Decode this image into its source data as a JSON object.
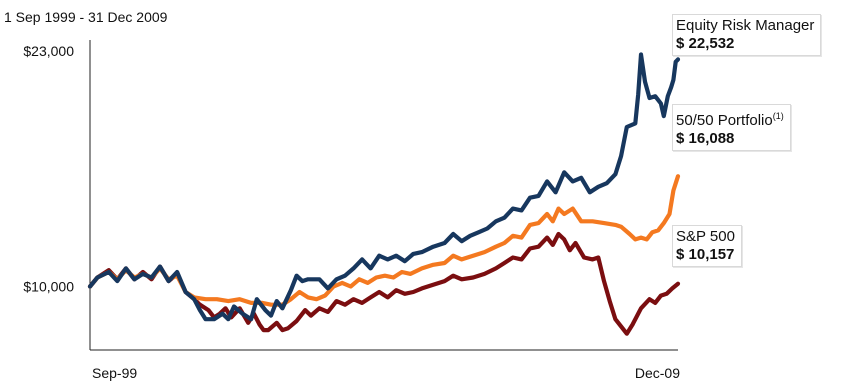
{
  "chart_data": {
    "type": "line",
    "title": "1 Sep 1999 - 31 Dec 2009",
    "xlabel": "",
    "ylabel": "",
    "x_tick_labels": [
      "Sep-99",
      "Dec-09"
    ],
    "y_tick_labels": [
      "$23,000",
      "$10,000"
    ],
    "y_ticks": [
      23000,
      10000
    ],
    "ylim": [
      6500,
      23600
    ],
    "xlim": [
      1999.67,
      2010.0
    ],
    "grid": false,
    "legend": "right",
    "series": [
      {
        "name": "Equity Risk Manager",
        "value_label": "$ 22,532",
        "sup": "",
        "color": "#17375e",
        "points": [
          [
            1999.67,
            10000
          ],
          [
            1999.8,
            10500
          ],
          [
            2000.0,
            10800
          ],
          [
            2000.15,
            10300
          ],
          [
            2000.3,
            11000
          ],
          [
            2000.45,
            10400
          ],
          [
            2000.6,
            10700
          ],
          [
            2000.75,
            10500
          ],
          [
            2000.9,
            11100
          ],
          [
            2001.05,
            10300
          ],
          [
            2001.2,
            10800
          ],
          [
            2001.35,
            9700
          ],
          [
            2001.5,
            9300
          ],
          [
            2001.6,
            8700
          ],
          [
            2001.7,
            8200
          ],
          [
            2001.85,
            8200
          ],
          [
            2002.0,
            8500
          ],
          [
            2002.1,
            8200
          ],
          [
            2002.2,
            8900
          ],
          [
            2002.35,
            8500
          ],
          [
            2002.5,
            8200
          ],
          [
            2002.6,
            9300
          ],
          [
            2002.75,
            8700
          ],
          [
            2002.85,
            8400
          ],
          [
            2002.95,
            9200
          ],
          [
            2003.05,
            8800
          ],
          [
            2003.2,
            9800
          ],
          [
            2003.3,
            10600
          ],
          [
            2003.4,
            10300
          ],
          [
            2003.5,
            10400
          ],
          [
            2003.7,
            10400
          ],
          [
            2003.85,
            9900
          ],
          [
            2004.0,
            10400
          ],
          [
            2004.15,
            10600
          ],
          [
            2004.3,
            11000
          ],
          [
            2004.45,
            11500
          ],
          [
            2004.6,
            11000
          ],
          [
            2004.75,
            11700
          ],
          [
            2004.9,
            11500
          ],
          [
            2005.05,
            11700
          ],
          [
            2005.2,
            11400
          ],
          [
            2005.35,
            11800
          ],
          [
            2005.5,
            11900
          ],
          [
            2005.7,
            12200
          ],
          [
            2005.9,
            12400
          ],
          [
            2006.05,
            12900
          ],
          [
            2006.2,
            12500
          ],
          [
            2006.35,
            12800
          ],
          [
            2006.5,
            13000
          ],
          [
            2006.65,
            13200
          ],
          [
            2006.8,
            13600
          ],
          [
            2006.95,
            13800
          ],
          [
            2007.1,
            14300
          ],
          [
            2007.25,
            14200
          ],
          [
            2007.4,
            14900
          ],
          [
            2007.55,
            15000
          ],
          [
            2007.7,
            15800
          ],
          [
            2007.85,
            15200
          ],
          [
            2008.0,
            16300
          ],
          [
            2008.15,
            15800
          ],
          [
            2008.3,
            16000
          ],
          [
            2008.45,
            15200
          ],
          [
            2008.6,
            15500
          ],
          [
            2008.75,
            15700
          ],
          [
            2008.9,
            16200
          ],
          [
            2009.0,
            17200
          ],
          [
            2009.1,
            18800
          ],
          [
            2009.25,
            19000
          ],
          [
            2009.3,
            20600
          ],
          [
            2009.35,
            22800
          ],
          [
            2009.42,
            21300
          ],
          [
            2009.5,
            20400
          ],
          [
            2009.6,
            20500
          ],
          [
            2009.7,
            20100
          ],
          [
            2009.75,
            19400
          ],
          [
            2009.82,
            20500
          ],
          [
            2009.88,
            21000
          ],
          [
            2009.92,
            21400
          ],
          [
            2009.96,
            22400
          ],
          [
            2010.0,
            22532
          ]
        ]
      },
      {
        "name": "50/50 Portfolio",
        "value_label": "$ 16,088",
        "sup": "(1)",
        "color": "#f47920",
        "points": [
          [
            1999.67,
            10000
          ],
          [
            1999.8,
            10500
          ],
          [
            2000.0,
            10800
          ],
          [
            2000.15,
            10400
          ],
          [
            2000.3,
            10900
          ],
          [
            2000.45,
            10500
          ],
          [
            2000.6,
            10700
          ],
          [
            2000.75,
            10500
          ],
          [
            2000.9,
            11000
          ],
          [
            2001.05,
            10400
          ],
          [
            2001.2,
            10600
          ],
          [
            2001.35,
            9700
          ],
          [
            2001.5,
            9400
          ],
          [
            2001.7,
            9300
          ],
          [
            2001.9,
            9300
          ],
          [
            2002.1,
            9200
          ],
          [
            2002.3,
            9300
          ],
          [
            2002.5,
            9100
          ],
          [
            2002.7,
            9100
          ],
          [
            2002.85,
            9000
          ],
          [
            2003.05,
            9000
          ],
          [
            2003.2,
            9300
          ],
          [
            2003.35,
            9700
          ],
          [
            2003.5,
            9400
          ],
          [
            2003.65,
            9300
          ],
          [
            2003.8,
            9500
          ],
          [
            2003.95,
            10000
          ],
          [
            2004.1,
            10200
          ],
          [
            2004.25,
            10000
          ],
          [
            2004.4,
            10400
          ],
          [
            2004.55,
            10200
          ],
          [
            2004.7,
            10500
          ],
          [
            2004.85,
            10600
          ],
          [
            2005.0,
            10500
          ],
          [
            2005.15,
            10800
          ],
          [
            2005.3,
            10700
          ],
          [
            2005.5,
            11000
          ],
          [
            2005.7,
            11200
          ],
          [
            2005.9,
            11300
          ],
          [
            2006.05,
            11700
          ],
          [
            2006.2,
            11500
          ],
          [
            2006.4,
            11700
          ],
          [
            2006.6,
            11900
          ],
          [
            2006.8,
            12200
          ],
          [
            2006.95,
            12400
          ],
          [
            2007.1,
            12800
          ],
          [
            2007.25,
            12700
          ],
          [
            2007.4,
            13400
          ],
          [
            2007.55,
            13500
          ],
          [
            2007.7,
            14000
          ],
          [
            2007.8,
            13600
          ],
          [
            2007.9,
            14300
          ],
          [
            2008.0,
            14000
          ],
          [
            2008.15,
            14300
          ],
          [
            2008.3,
            13600
          ],
          [
            2008.5,
            13600
          ],
          [
            2008.7,
            13500
          ],
          [
            2008.9,
            13400
          ],
          [
            2009.0,
            13300
          ],
          [
            2009.15,
            12900
          ],
          [
            2009.25,
            12600
          ],
          [
            2009.35,
            12700
          ],
          [
            2009.45,
            12600
          ],
          [
            2009.55,
            13000
          ],
          [
            2009.65,
            13100
          ],
          [
            2009.75,
            13500
          ],
          [
            2009.85,
            14000
          ],
          [
            2009.92,
            15300
          ],
          [
            2010.0,
            16088
          ]
        ]
      },
      {
        "name": "S&P 500",
        "value_label": "$ 10,157",
        "sup": "",
        "color": "#7b0e10",
        "points": [
          [
            1999.67,
            10000
          ],
          [
            1999.8,
            10500
          ],
          [
            2000.0,
            10900
          ],
          [
            2000.15,
            10400
          ],
          [
            2000.3,
            11000
          ],
          [
            2000.45,
            10400
          ],
          [
            2000.6,
            10800
          ],
          [
            2000.75,
            10400
          ],
          [
            2000.9,
            11100
          ],
          [
            2001.05,
            10300
          ],
          [
            2001.2,
            10700
          ],
          [
            2001.35,
            9700
          ],
          [
            2001.5,
            9300
          ],
          [
            2001.6,
            9000
          ],
          [
            2001.75,
            8700
          ],
          [
            2001.85,
            8300
          ],
          [
            2001.95,
            8500
          ],
          [
            2002.05,
            8800
          ],
          [
            2002.15,
            8300
          ],
          [
            2002.3,
            8800
          ],
          [
            2002.45,
            8000
          ],
          [
            2002.55,
            8500
          ],
          [
            2002.65,
            7900
          ],
          [
            2002.72,
            7600
          ],
          [
            2002.8,
            7600
          ],
          [
            2002.95,
            8000
          ],
          [
            2003.05,
            7600
          ],
          [
            2003.15,
            7700
          ],
          [
            2003.3,
            8100
          ],
          [
            2003.45,
            8700
          ],
          [
            2003.55,
            8400
          ],
          [
            2003.7,
            8800
          ],
          [
            2003.85,
            8600
          ],
          [
            2004.0,
            9200
          ],
          [
            2004.15,
            9000
          ],
          [
            2004.3,
            9300
          ],
          [
            2004.45,
            9100
          ],
          [
            2004.6,
            9400
          ],
          [
            2004.75,
            9700
          ],
          [
            2004.9,
            9400
          ],
          [
            2005.05,
            9800
          ],
          [
            2005.2,
            9600
          ],
          [
            2005.35,
            9700
          ],
          [
            2005.5,
            9900
          ],
          [
            2005.7,
            10100
          ],
          [
            2005.9,
            10300
          ],
          [
            2006.05,
            10600
          ],
          [
            2006.2,
            10400
          ],
          [
            2006.4,
            10500
          ],
          [
            2006.6,
            10700
          ],
          [
            2006.8,
            11000
          ],
          [
            2006.95,
            11300
          ],
          [
            2007.1,
            11600
          ],
          [
            2007.25,
            11500
          ],
          [
            2007.4,
            12100
          ],
          [
            2007.55,
            12200
          ],
          [
            2007.7,
            12700
          ],
          [
            2007.8,
            12300
          ],
          [
            2007.9,
            12900
          ],
          [
            2008.0,
            12600
          ],
          [
            2008.1,
            12000
          ],
          [
            2008.2,
            12400
          ],
          [
            2008.35,
            11600
          ],
          [
            2008.5,
            11500
          ],
          [
            2008.6,
            11600
          ],
          [
            2008.7,
            10300
          ],
          [
            2008.8,
            9200
          ],
          [
            2008.9,
            8200
          ],
          [
            2009.0,
            7800
          ],
          [
            2009.1,
            7400
          ],
          [
            2009.2,
            7900
          ],
          [
            2009.35,
            8800
          ],
          [
            2009.5,
            9300
          ],
          [
            2009.6,
            9100
          ],
          [
            2009.7,
            9500
          ],
          [
            2009.8,
            9600
          ],
          [
            2009.9,
            9900
          ],
          [
            2010.0,
            10157
          ]
        ]
      }
    ]
  }
}
